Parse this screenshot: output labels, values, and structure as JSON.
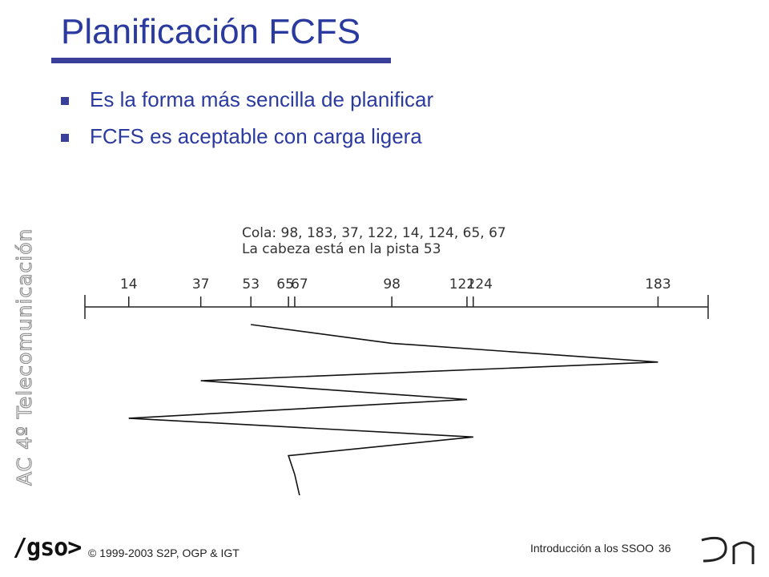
{
  "slide": {
    "title": "Planificación FCFS",
    "bullets": [
      "Es la forma más sencilla de planificar",
      "FCFS es aceptable con carga ligera"
    ],
    "side_label": "AC 4º Telecomunicación"
  },
  "diagram": {
    "queue_label": "Cola: 98, 183, 37, 122, 14, 124, 65, 67",
    "head_label": "La cabeza está en la pista 53",
    "track_min": 0,
    "track_max": 199,
    "tracks": [
      14,
      37,
      53,
      65,
      67,
      98,
      122,
      124,
      183
    ],
    "start_track": 53,
    "service_order": [
      98,
      183,
      37,
      122,
      14,
      124,
      65,
      67
    ]
  },
  "footer": {
    "logo_text": "/gso>",
    "copyright": "© 1999-2003 S2P, OGP & IGT",
    "course": "Introducción a los SSOO",
    "page_number": "36"
  }
}
